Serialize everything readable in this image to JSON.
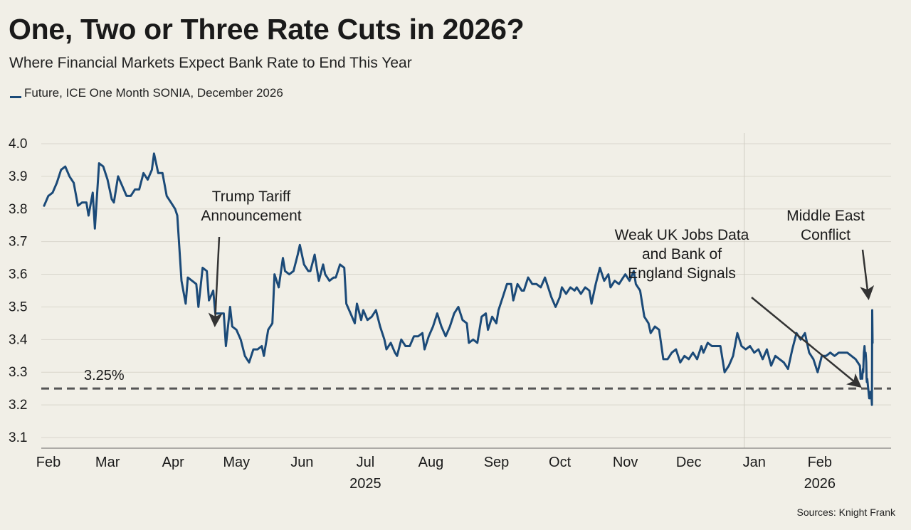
{
  "title": "One, Two or Three Rate Cuts in 2026?",
  "subtitle": "Where Financial Markets Expect Bank Rate to End This Year",
  "source": "Sources: Knight Frank",
  "colors": {
    "series": "#1b4a78",
    "reference_line": "#555555",
    "background": "#f1efe7",
    "grid": "#d9d6cc"
  },
  "chart_data": {
    "type": "line",
    "title": "One, Two or Three Rate Cuts in 2026?",
    "subtitle": "Where Financial Markets Expect Bank Rate to End This Year",
    "legend": "top-left",
    "grid": true,
    "ylim": [
      3.1,
      4.0
    ],
    "yticks": [
      "4.0",
      "3.9",
      "3.8",
      "3.7",
      "3.6",
      "3.5",
      "3.4",
      "3.3",
      "3.2",
      "3.1"
    ],
    "xlim": [
      "2025-02-01",
      "2026-02-28"
    ],
    "month_labels": [
      {
        "label": "Feb",
        "date": "2025-02-01"
      },
      {
        "label": "Mar",
        "date": "2025-03-01"
      },
      {
        "label": "Apr",
        "date": "2025-04-01"
      },
      {
        "label": "May",
        "date": "2025-05-01"
      },
      {
        "label": "Jun",
        "date": "2025-06-01"
      },
      {
        "label": "Jul",
        "date": "2025-07-01"
      },
      {
        "label": "Aug",
        "date": "2025-08-01"
      },
      {
        "label": "Sep",
        "date": "2025-09-01"
      },
      {
        "label": "Oct",
        "date": "2025-10-01"
      },
      {
        "label": "Nov",
        "date": "2025-11-01"
      },
      {
        "label": "Dec",
        "date": "2025-12-01"
      },
      {
        "label": "Jan",
        "date": "2026-01-01"
      },
      {
        "label": "Feb",
        "date": "2026-02-01"
      }
    ],
    "year_labels": [
      {
        "label": "2025",
        "date": "2025-07-01"
      },
      {
        "label": "2026",
        "date": "2026-02-01"
      }
    ],
    "year_divider": "2026-01-01",
    "reference_line": {
      "value": 3.25,
      "label": "3.25%"
    },
    "series": [
      {
        "name": "Future, ICE One Month SONIA, December 2026",
        "points": [
          [
            "2025-02-01",
            3.81
          ],
          [
            "2025-02-03",
            3.84
          ],
          [
            "2025-02-05",
            3.85
          ],
          [
            "2025-02-07",
            3.88
          ],
          [
            "2025-02-09",
            3.92
          ],
          [
            "2025-02-11",
            3.93
          ],
          [
            "2025-02-13",
            3.9
          ],
          [
            "2025-02-15",
            3.88
          ],
          [
            "2025-02-17",
            3.81
          ],
          [
            "2025-02-19",
            3.82
          ],
          [
            "2025-02-21",
            3.82
          ],
          [
            "2025-02-22",
            3.78
          ],
          [
            "2025-02-24",
            3.85
          ],
          [
            "2025-02-25",
            3.74
          ],
          [
            "2025-02-27",
            3.94
          ],
          [
            "2025-03-01",
            3.93
          ],
          [
            "2025-03-03",
            3.89
          ],
          [
            "2025-03-05",
            3.83
          ],
          [
            "2025-03-06",
            3.82
          ],
          [
            "2025-03-08",
            3.9
          ],
          [
            "2025-03-10",
            3.87
          ],
          [
            "2025-03-12",
            3.84
          ],
          [
            "2025-03-14",
            3.84
          ],
          [
            "2025-03-16",
            3.86
          ],
          [
            "2025-03-18",
            3.86
          ],
          [
            "2025-03-20",
            3.91
          ],
          [
            "2025-03-22",
            3.89
          ],
          [
            "2025-03-24",
            3.92
          ],
          [
            "2025-03-25",
            3.97
          ],
          [
            "2025-03-27",
            3.91
          ],
          [
            "2025-03-29",
            3.91
          ],
          [
            "2025-03-31",
            3.84
          ],
          [
            "2025-04-02",
            3.82
          ],
          [
            "2025-04-04",
            3.8
          ],
          [
            "2025-04-05",
            3.78
          ],
          [
            "2025-04-07",
            3.58
          ],
          [
            "2025-04-09",
            3.51
          ],
          [
            "2025-04-10",
            3.59
          ],
          [
            "2025-04-12",
            3.58
          ],
          [
            "2025-04-14",
            3.57
          ],
          [
            "2025-04-15",
            3.5
          ],
          [
            "2025-04-17",
            3.62
          ],
          [
            "2025-04-19",
            3.61
          ],
          [
            "2025-04-20",
            3.52
          ],
          [
            "2025-04-22",
            3.55
          ],
          [
            "2025-04-23",
            3.48
          ],
          [
            "2025-04-25",
            3.48
          ],
          [
            "2025-04-27",
            3.48
          ],
          [
            "2025-04-28",
            3.38
          ],
          [
            "2025-04-30",
            3.5
          ],
          [
            "2025-05-01",
            3.44
          ],
          [
            "2025-05-03",
            3.43
          ],
          [
            "2025-05-05",
            3.4
          ],
          [
            "2025-05-07",
            3.35
          ],
          [
            "2025-05-09",
            3.33
          ],
          [
            "2025-05-11",
            3.37
          ],
          [
            "2025-05-13",
            3.37
          ],
          [
            "2025-05-15",
            3.38
          ],
          [
            "2025-05-16",
            3.35
          ],
          [
            "2025-05-18",
            3.43
          ],
          [
            "2025-05-20",
            3.45
          ],
          [
            "2025-05-21",
            3.6
          ],
          [
            "2025-05-23",
            3.56
          ],
          [
            "2025-05-25",
            3.65
          ],
          [
            "2025-05-26",
            3.61
          ],
          [
            "2025-05-28",
            3.6
          ],
          [
            "2025-05-30",
            3.61
          ],
          [
            "2025-06-01",
            3.66
          ],
          [
            "2025-06-02",
            3.69
          ],
          [
            "2025-06-04",
            3.63
          ],
          [
            "2025-06-06",
            3.61
          ],
          [
            "2025-06-07",
            3.61
          ],
          [
            "2025-06-09",
            3.66
          ],
          [
            "2025-06-11",
            3.58
          ],
          [
            "2025-06-13",
            3.63
          ],
          [
            "2025-06-14",
            3.6
          ],
          [
            "2025-06-16",
            3.58
          ],
          [
            "2025-06-18",
            3.59
          ],
          [
            "2025-06-19",
            3.59
          ],
          [
            "2025-06-21",
            3.63
          ],
          [
            "2025-06-23",
            3.62
          ],
          [
            "2025-06-24",
            3.51
          ],
          [
            "2025-06-26",
            3.48
          ],
          [
            "2025-06-28",
            3.45
          ],
          [
            "2025-06-29",
            3.51
          ],
          [
            "2025-07-01",
            3.46
          ],
          [
            "2025-07-02",
            3.49
          ],
          [
            "2025-07-04",
            3.46
          ],
          [
            "2025-07-06",
            3.47
          ],
          [
            "2025-07-08",
            3.49
          ],
          [
            "2025-07-10",
            3.44
          ],
          [
            "2025-07-12",
            3.4
          ],
          [
            "2025-07-13",
            3.37
          ],
          [
            "2025-07-15",
            3.39
          ],
          [
            "2025-07-17",
            3.36
          ],
          [
            "2025-07-18",
            3.35
          ],
          [
            "2025-07-20",
            3.4
          ],
          [
            "2025-07-22",
            3.38
          ],
          [
            "2025-07-24",
            3.38
          ],
          [
            "2025-07-26",
            3.41
          ],
          [
            "2025-07-28",
            3.41
          ],
          [
            "2025-07-30",
            3.42
          ],
          [
            "2025-07-31",
            3.37
          ],
          [
            "2025-08-02",
            3.41
          ],
          [
            "2025-08-04",
            3.44
          ],
          [
            "2025-08-06",
            3.48
          ],
          [
            "2025-08-08",
            3.44
          ],
          [
            "2025-08-10",
            3.41
          ],
          [
            "2025-08-12",
            3.44
          ],
          [
            "2025-08-14",
            3.48
          ],
          [
            "2025-08-16",
            3.5
          ],
          [
            "2025-08-18",
            3.46
          ],
          [
            "2025-08-20",
            3.45
          ],
          [
            "2025-08-21",
            3.39
          ],
          [
            "2025-08-23",
            3.4
          ],
          [
            "2025-08-25",
            3.39
          ],
          [
            "2025-08-27",
            3.47
          ],
          [
            "2025-08-29",
            3.48
          ],
          [
            "2025-08-30",
            3.43
          ],
          [
            "2025-09-01",
            3.47
          ],
          [
            "2025-09-03",
            3.45
          ],
          [
            "2025-09-04",
            3.49
          ],
          [
            "2025-09-06",
            3.53
          ],
          [
            "2025-09-08",
            3.57
          ],
          [
            "2025-09-10",
            3.57
          ],
          [
            "2025-09-11",
            3.52
          ],
          [
            "2025-09-13",
            3.57
          ],
          [
            "2025-09-15",
            3.55
          ],
          [
            "2025-09-16",
            3.55
          ],
          [
            "2025-09-18",
            3.59
          ],
          [
            "2025-09-20",
            3.57
          ],
          [
            "2025-09-22",
            3.57
          ],
          [
            "2025-09-24",
            3.56
          ],
          [
            "2025-09-26",
            3.59
          ],
          [
            "2025-09-27",
            3.57
          ],
          [
            "2025-09-29",
            3.53
          ],
          [
            "2025-10-01",
            3.5
          ],
          [
            "2025-10-03",
            3.53
          ],
          [
            "2025-10-04",
            3.56
          ],
          [
            "2025-10-06",
            3.54
          ],
          [
            "2025-10-08",
            3.56
          ],
          [
            "2025-10-10",
            3.55
          ],
          [
            "2025-10-11",
            3.56
          ],
          [
            "2025-10-13",
            3.54
          ],
          [
            "2025-10-15",
            3.56
          ],
          [
            "2025-10-17",
            3.55
          ],
          [
            "2025-10-18",
            3.51
          ],
          [
            "2025-10-20",
            3.57
          ],
          [
            "2025-10-22",
            3.62
          ],
          [
            "2025-10-24",
            3.58
          ],
          [
            "2025-10-26",
            3.6
          ],
          [
            "2025-10-27",
            3.56
          ],
          [
            "2025-10-29",
            3.58
          ],
          [
            "2025-10-31",
            3.57
          ],
          [
            "2025-11-02",
            3.59
          ],
          [
            "2025-11-03",
            3.6
          ],
          [
            "2025-11-05",
            3.58
          ],
          [
            "2025-11-07",
            3.61
          ],
          [
            "2025-11-08",
            3.57
          ],
          [
            "2025-11-10",
            3.55
          ],
          [
            "2025-11-12",
            3.47
          ],
          [
            "2025-11-14",
            3.45
          ],
          [
            "2025-11-15",
            3.42
          ],
          [
            "2025-11-17",
            3.44
          ],
          [
            "2025-11-19",
            3.43
          ],
          [
            "2025-11-21",
            3.34
          ],
          [
            "2025-11-23",
            3.34
          ],
          [
            "2025-11-25",
            3.36
          ],
          [
            "2025-11-27",
            3.37
          ],
          [
            "2025-11-29",
            3.33
          ],
          [
            "2025-12-01",
            3.35
          ],
          [
            "2025-12-03",
            3.34
          ],
          [
            "2025-12-05",
            3.36
          ],
          [
            "2025-12-07",
            3.34
          ],
          [
            "2025-12-09",
            3.38
          ],
          [
            "2025-12-10",
            3.36
          ],
          [
            "2025-12-12",
            3.39
          ],
          [
            "2025-12-14",
            3.38
          ],
          [
            "2025-12-16",
            3.38
          ],
          [
            "2025-12-18",
            3.38
          ],
          [
            "2025-12-20",
            3.3
          ],
          [
            "2025-12-22",
            3.32
          ],
          [
            "2025-12-24",
            3.35
          ],
          [
            "2025-12-26",
            3.42
          ],
          [
            "2025-12-28",
            3.38
          ],
          [
            "2025-12-30",
            3.37
          ],
          [
            "2026-01-01",
            3.38
          ],
          [
            "2026-01-03",
            3.36
          ],
          [
            "2026-01-05",
            3.37
          ],
          [
            "2026-01-07",
            3.34
          ],
          [
            "2026-01-09",
            3.37
          ],
          [
            "2026-01-11",
            3.32
          ],
          [
            "2026-01-13",
            3.35
          ],
          [
            "2026-01-15",
            3.34
          ],
          [
            "2026-01-17",
            3.33
          ],
          [
            "2026-01-19",
            3.31
          ],
          [
            "2026-01-21",
            3.37
          ],
          [
            "2026-01-23",
            3.42
          ],
          [
            "2026-01-25",
            3.4
          ],
          [
            "2026-01-27",
            3.42
          ],
          [
            "2026-01-29",
            3.36
          ],
          [
            "2026-01-31",
            3.34
          ],
          [
            "2026-02-02",
            3.3
          ],
          [
            "2026-02-04",
            3.35
          ],
          [
            "2026-02-06",
            3.35
          ],
          [
            "2026-02-08",
            3.36
          ],
          [
            "2026-02-10",
            3.35
          ],
          [
            "2026-02-12",
            3.36
          ],
          [
            "2026-02-14",
            3.36
          ],
          [
            "2026-02-16",
            3.36
          ],
          [
            "2026-02-18",
            3.35
          ],
          [
            "2026-02-20",
            3.34
          ],
          [
            "2026-02-21",
            3.33
          ],
          [
            "2026-02-22",
            3.32
          ],
          [
            "2026-02-23",
            3.3
          ],
          [
            "2026-02-23",
            3.28
          ],
          [
            "2026-02-24",
            3.28
          ],
          [
            "2026-02-24",
            3.29
          ],
          [
            "2026-02-25",
            3.29
          ],
          [
            "2026-02-25",
            3.29
          ],
          [
            "2026-02-26",
            3.28
          ],
          [
            "2026-02-26",
            3.3
          ],
          [
            "2026-02-26",
            3.31
          ],
          [
            "2026-02-27",
            3.3
          ],
          [
            "2026-02-27",
            3.33
          ],
          [
            "2026-02-27",
            3.36
          ],
          [
            "2026-02-27",
            3.37
          ],
          [
            "2026-02-27",
            3.38
          ],
          [
            "2026-02-27",
            3.36
          ],
          [
            "2026-02-27",
            3.35
          ],
          [
            "2026-02-27",
            3.36
          ],
          [
            "2026-02-27",
            3.35
          ],
          [
            "2026-02-28",
            3.33
          ],
          [
            "2026-02-28",
            3.28
          ],
          [
            "2026-02-28",
            3.27
          ],
          [
            "2026-02-28",
            3.28
          ],
          [
            "2026-02-28",
            3.27
          ],
          [
            "2026-02-28",
            3.26
          ],
          [
            "2026-02-28",
            3.25
          ],
          [
            "2026-02-28",
            3.24
          ],
          [
            "2026-02-28",
            3.23
          ],
          [
            "2026-02-28",
            3.22
          ],
          [
            "2026-02-28",
            3.23
          ],
          [
            "2026-02-28",
            3.22
          ],
          [
            "2026-02-28",
            3.23
          ],
          [
            "2026-02-28",
            3.24
          ],
          [
            "2026-02-28",
            3.23
          ],
          [
            "2026-02-28",
            3.24
          ],
          [
            "2026-02-28",
            3.22
          ],
          [
            "2026-02-28",
            3.2
          ],
          [
            "2026-02-28",
            3.49
          ],
          [
            "2026-02-28",
            3.39
          ]
        ]
      }
    ],
    "annotations": [
      {
        "text_lines": [
          "Trump Tariff",
          "Announcement"
        ],
        "target_date": "2025-05-02",
        "target_value": 3.44
      },
      {
        "text_lines": [
          "Weak UK Jobs Data",
          "and Bank of",
          "England Signals"
        ],
        "target_date": "2026-02-27",
        "target_value": 3.25
      },
      {
        "text_lines": [
          "Middle East",
          "Conflict"
        ],
        "target_date": "2026-02-28",
        "target_value": 3.52
      }
    ]
  }
}
